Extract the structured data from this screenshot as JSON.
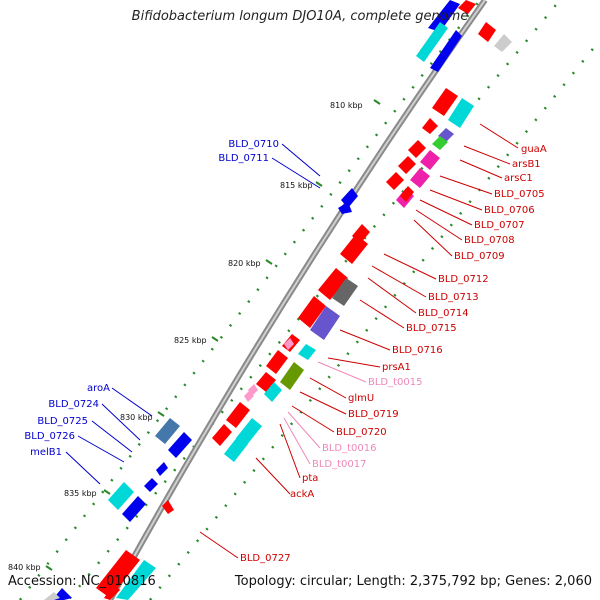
{
  "title": "Bifidobacterium longum DJO10A, complete genome",
  "footer": {
    "accession": "Accession: NC_010816",
    "summary": "Topology: circular; Length: 2,375,792 bp; Genes: 2,060"
  },
  "ruler": {
    "unit": "kbp",
    "ticks": [
      {
        "kbp": 810,
        "label": "810 kbp"
      },
      {
        "kbp": 815,
        "label": "815 kbp"
      },
      {
        "kbp": 820,
        "label": "820 kbp"
      },
      {
        "kbp": 825,
        "label": "825 kbp"
      },
      {
        "kbp": 830,
        "label": "830 kbp"
      },
      {
        "kbp": 835,
        "label": "835 kbp"
      },
      {
        "kbp": 840,
        "label": "840 kbp"
      }
    ]
  },
  "colors": {
    "cds": "#ff0000",
    "cds_reverse": "#0000ee",
    "trna": "#ff99cc",
    "label_forward": "#cc0000",
    "label_reverse": "#0000cc",
    "label_trna": "#ee88bb",
    "cog_cyan": "#00d8d8",
    "cog_magenta": "#ee22aa",
    "cog_purple": "#6655cc",
    "cog_olive": "#669900",
    "cog_grey": "#666666",
    "cog_steel": "#4477aa",
    "backbone": "#888888",
    "dots": "#228822"
  },
  "labels_reverse": [
    "BLD_0710",
    "BLD_0711",
    "aroA",
    "BLD_0724",
    "BLD_0725",
    "BLD_0726",
    "melB1"
  ],
  "labels_forward": [
    "guaA",
    "arsB1",
    "arsC1",
    "BLD_0705",
    "BLD_0706",
    "BLD_0707",
    "BLD_0708",
    "BLD_0709",
    "BLD_0712",
    "BLD_0713",
    "BLD_0714",
    "BLD_0715",
    "BLD_0716",
    "prsA1",
    "BLD_t0015",
    "glmU",
    "BLD_0719",
    "BLD_0720",
    "BLD_t0016",
    "BLD_t0017",
    "pta",
    "ackA",
    "BLD_0727"
  ],
  "trna_labels": [
    "BLD_t0015",
    "BLD_t0016",
    "BLD_t0017"
  ]
}
